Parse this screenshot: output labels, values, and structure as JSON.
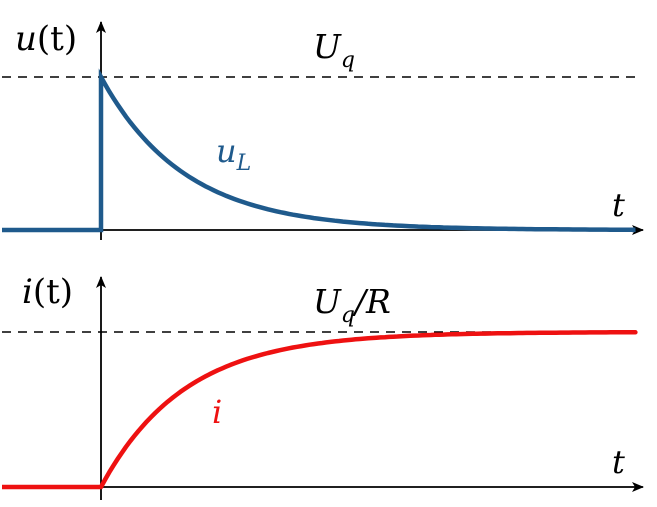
{
  "colors": {
    "axis": "#000000",
    "voltage_curve": "#1f5a8c",
    "current_curve": "#ee1111",
    "asymptote": "#000000"
  },
  "top_plot": {
    "y_label": {
      "var": "u",
      "arg": "(t)"
    },
    "x_label": "t",
    "asymptote_label": {
      "main": "U",
      "sub": "q"
    },
    "curve_label": {
      "main": "u",
      "sub": "L"
    }
  },
  "bottom_plot": {
    "y_label": {
      "var": "i",
      "arg": "(t)"
    },
    "x_label": "t",
    "asymptote_label": {
      "main": "U",
      "sub": "q",
      "rest": "/R"
    },
    "curve_label": {
      "main": "i"
    }
  },
  "chart_data": [
    {
      "type": "line",
      "series": [
        {
          "name": "u_L",
          "x": [
            -1,
            0,
            0,
            0.5,
            1,
            1.5,
            2,
            3,
            4,
            5,
            6
          ],
          "y": [
            0,
            0,
            1,
            0.607,
            0.368,
            0.223,
            0.135,
            0.05,
            0.018,
            0.007,
            0.002
          ]
        }
      ],
      "asymptote_y": 1,
      "xlabel": "t",
      "ylabel": "u(t)"
    },
    {
      "type": "line",
      "series": [
        {
          "name": "i",
          "x": [
            -1,
            0,
            0.5,
            1,
            1.5,
            2,
            3,
            4,
            5,
            6
          ],
          "y": [
            0,
            0,
            0.393,
            0.632,
            0.777,
            0.865,
            0.95,
            0.982,
            0.993,
            0.998
          ]
        }
      ],
      "asymptote_y": 1,
      "xlabel": "t",
      "ylabel": "i(t)"
    }
  ]
}
